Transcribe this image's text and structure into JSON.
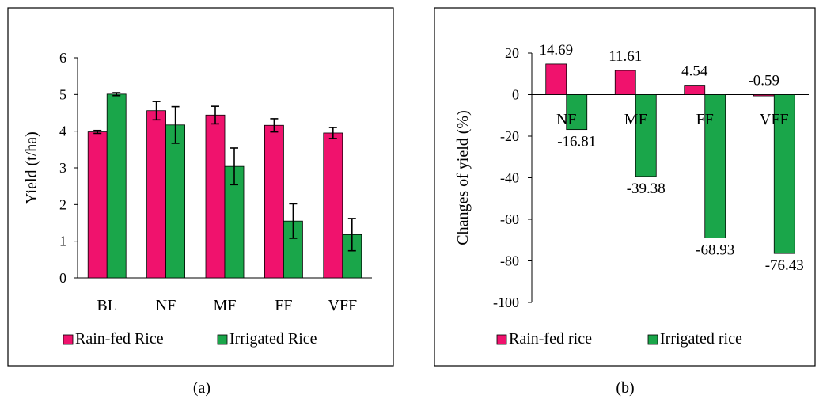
{
  "colors": {
    "rain": "#f0126d",
    "irrigated": "#1aa64a",
    "bar_stroke": "#000000"
  },
  "chart_data": [
    {
      "type": "bar",
      "panel_label": "(a)",
      "ylabel": "Yield (t/ha)",
      "ylim": [
        0,
        6
      ],
      "yticks": [
        0,
        1,
        2,
        3,
        4,
        5,
        6
      ],
      "categories": [
        "BL",
        "NF",
        "MF",
        "FF",
        "VFF"
      ],
      "legend_position": "bottom",
      "series": [
        {
          "name": "Rain-fed Rice",
          "color": "#f0126d",
          "values": [
            3.98,
            4.56,
            4.44,
            4.16,
            3.95
          ],
          "errors": [
            0.04,
            0.25,
            0.24,
            0.18,
            0.15
          ]
        },
        {
          "name": "Irrigated Rice",
          "color": "#1aa64a",
          "values": [
            5.01,
            4.17,
            3.04,
            1.55,
            1.18
          ],
          "errors": [
            0.04,
            0.5,
            0.5,
            0.47,
            0.44
          ]
        }
      ]
    },
    {
      "type": "bar",
      "panel_label": "(b)",
      "ylabel": "Changes of  yield (%)",
      "ylim": [
        -100,
        20
      ],
      "yticks": [
        20,
        0,
        -20,
        -40,
        -60,
        -80,
        -100
      ],
      "categories": [
        "NF",
        "MF",
        "FF",
        "VFF"
      ],
      "legend_position": "bottom",
      "series": [
        {
          "name": "Rain-fed rice",
          "color": "#f0126d",
          "values": [
            14.69,
            11.61,
            4.54,
            -0.59
          ],
          "labels": [
            "14.69",
            "11.61",
            "4.54",
            "-0.59"
          ]
        },
        {
          "name": "Irrigated rice",
          "color": "#1aa64a",
          "values": [
            -16.81,
            -39.38,
            -68.93,
            -76.43
          ],
          "labels": [
            "-16.81",
            "-39.38",
            "-68.93",
            "-76.43"
          ]
        }
      ]
    }
  ]
}
